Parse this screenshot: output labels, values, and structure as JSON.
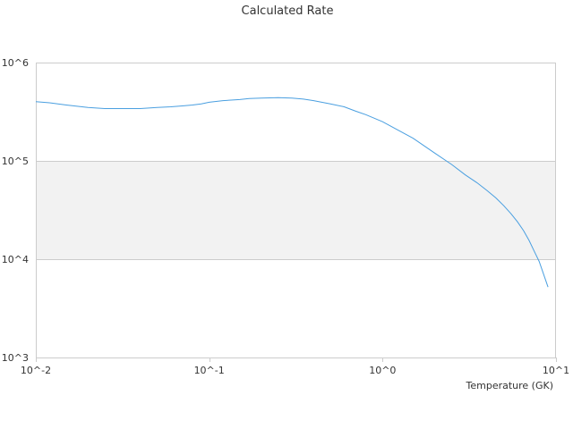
{
  "chart_data": {
    "type": "line",
    "title": "Calculated Rate",
    "xlabel": "Temperature (GK)",
    "ylabel": "",
    "xscale": "log",
    "yscale": "log",
    "xlim": [
      0.01,
      10
    ],
    "ylim": [
      1000,
      1000000
    ],
    "x_tick_labels": [
      "10^-2",
      "10^-1",
      "10^0",
      "10^1"
    ],
    "y_tick_labels": [
      "10^3",
      "10^4",
      "10^5",
      "10^6"
    ],
    "grid": true,
    "alternate_band_fill": "#f2f2f2",
    "colors": {
      "line": "#4a9fe0",
      "axis": "#cccccc",
      "text": "#333333"
    },
    "series": [
      {
        "x": [
          0.01,
          0.012,
          0.015,
          0.02,
          0.025,
          0.03,
          0.04,
          0.05,
          0.06,
          0.07,
          0.08,
          0.09,
          0.1,
          0.12,
          0.15,
          0.17,
          0.2,
          0.25,
          0.3,
          0.35,
          0.4,
          0.5,
          0.6,
          0.7,
          0.8,
          1.0,
          1.2,
          1.5,
          2.0,
          2.5,
          3.0,
          3.5,
          4.0,
          4.5,
          5.0,
          5.5,
          6.0,
          6.5,
          7.0,
          7.5,
          8.0,
          9.0
        ],
        "y": [
          400000,
          390000,
          370000,
          350000,
          340000,
          340000,
          340000,
          350000,
          355000,
          362000,
          370000,
          380000,
          395000,
          410000,
          420000,
          430000,
          435000,
          440000,
          435000,
          425000,
          410000,
          380000,
          355000,
          320000,
          295000,
          250000,
          210000,
          170000,
          120000,
          92000,
          72000,
          60000,
          50000,
          42000,
          35000,
          29000,
          24000,
          19500,
          15500,
          12000,
          9500,
          5200
        ]
      }
    ]
  }
}
